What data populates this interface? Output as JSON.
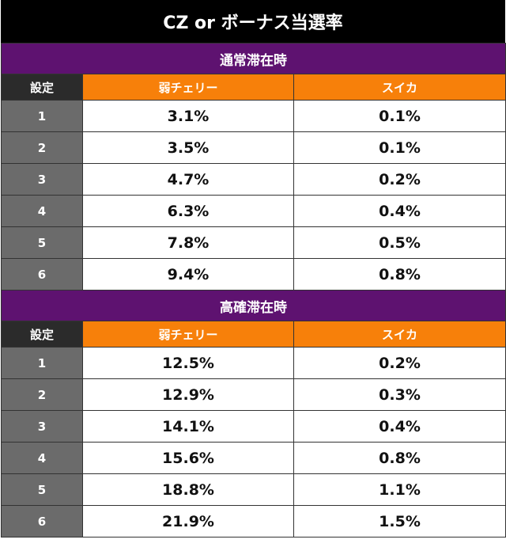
{
  "title": "CZ or ボーナス当選率",
  "sections": [
    {
      "name": "通常滞在時",
      "header": {
        "setting": "設定",
        "col1": "弱チェリー",
        "col2": "スイカ"
      },
      "rows": [
        {
          "setting": "1",
          "col1": "3.1%",
          "col2": "0.1%"
        },
        {
          "setting": "2",
          "col1": "3.5%",
          "col2": "0.1%"
        },
        {
          "setting": "3",
          "col1": "4.7%",
          "col2": "0.2%"
        },
        {
          "setting": "4",
          "col1": "6.3%",
          "col2": "0.4%"
        },
        {
          "setting": "5",
          "col1": "7.8%",
          "col2": "0.5%"
        },
        {
          "setting": "6",
          "col1": "9.4%",
          "col2": "0.8%"
        }
      ]
    },
    {
      "name": "高確滞在時",
      "header": {
        "setting": "設定",
        "col1": "弱チェリー",
        "col2": "スイカ"
      },
      "rows": [
        {
          "setting": "1",
          "col1": "12.5%",
          "col2": "0.2%"
        },
        {
          "setting": "2",
          "col1": "12.9%",
          "col2": "0.3%"
        },
        {
          "setting": "3",
          "col1": "14.1%",
          "col2": "0.4%"
        },
        {
          "setting": "4",
          "col1": "15.6%",
          "col2": "0.8%"
        },
        {
          "setting": "5",
          "col1": "18.8%",
          "col2": "1.1%"
        },
        {
          "setting": "6",
          "col1": "21.9%",
          "col2": "1.5%"
        }
      ]
    }
  ],
  "colors": {
    "title_bg": "#000000",
    "section_bg": "#5e1270",
    "header_orange": "#f7800a",
    "setting_header_bg": "#2b2b2b",
    "setting_cell_bg": "#6b6b6b"
  }
}
